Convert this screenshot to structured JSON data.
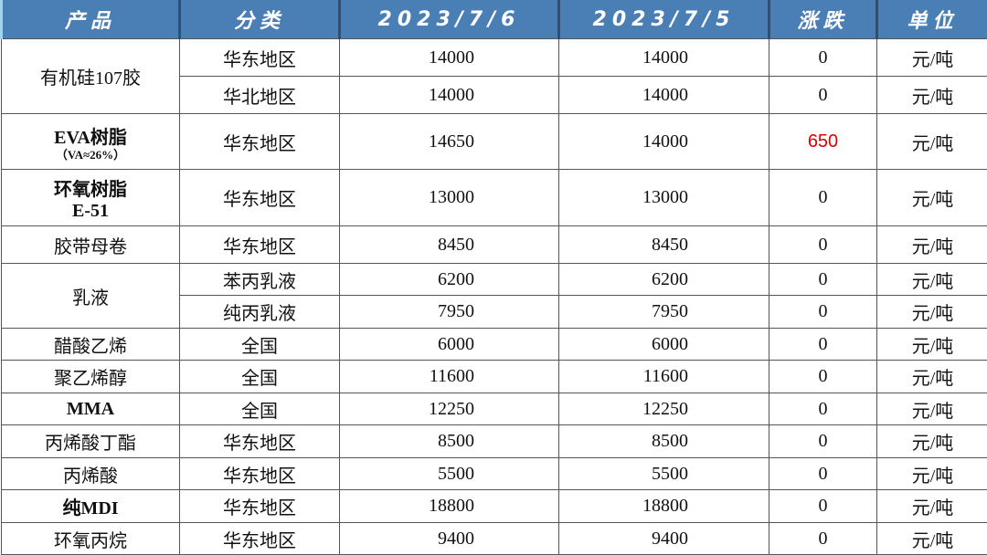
{
  "headers": [
    "产品",
    "分类",
    "2023/7/6",
    "2023/7/5",
    "涨跌",
    "单位"
  ],
  "rows": [
    {
      "product": "有机硅107胶",
      "span": 2,
      "region": "华东地区",
      "d1": "14000",
      "d2": "14000",
      "chg": "0",
      "unit": "元/吨"
    },
    {
      "region": "华北地区",
      "d1": "14000",
      "d2": "14000",
      "chg": "0",
      "unit": "元/吨"
    },
    {
      "product": "EVA树脂",
      "product_sub": "（VA≈26%）",
      "span": 1,
      "region": "华东地区",
      "d1": "14650",
      "d2": "14000",
      "chg": "650",
      "unit": "元/吨",
      "chg_color": "#e00000"
    },
    {
      "product": "环氧树脂",
      "product_sub": "E-51",
      "span": 1,
      "region": "华东地区",
      "d1": "13000",
      "d2": "13000",
      "chg": "0",
      "unit": "元/吨"
    },
    {
      "product": "胶带母卷",
      "span": 1,
      "region": "华东地区",
      "d1": "8450",
      "d2": "8450",
      "chg": "0",
      "unit": "元/吨"
    },
    {
      "product": "乳液",
      "span": 2,
      "region": "苯丙乳液",
      "d1": "6200",
      "d2": "6200",
      "chg": "0",
      "unit": "元/吨"
    },
    {
      "region": "纯丙乳液",
      "d1": "7950",
      "d2": "7950",
      "chg": "0",
      "unit": "元/吨"
    },
    {
      "product": "醋酸乙烯",
      "span": 1,
      "region": "全国",
      "d1": "6000",
      "d2": "6000",
      "chg": "0",
      "unit": "元/吨"
    },
    {
      "product": "聚乙烯醇",
      "span": 1,
      "region": "全国",
      "d1": "11600",
      "d2": "11600",
      "chg": "0",
      "unit": "元/吨"
    },
    {
      "product": "MMA",
      "span": 1,
      "region": "全国",
      "d1": "12250",
      "d2": "12250",
      "chg": "0",
      "unit": "元/吨"
    },
    {
      "product": "丙烯酸丁酯",
      "span": 1,
      "region": "华东地区",
      "d1": "8500",
      "d2": "8500",
      "chg": "0",
      "unit": "元/吨"
    },
    {
      "product": "丙烯酸",
      "span": 1,
      "region": "华东地区",
      "d1": "5500",
      "d2": "5500",
      "chg": "0",
      "unit": "元/吨"
    },
    {
      "product": "纯MDI",
      "span": 1,
      "region": "华东地区",
      "d1": "18800",
      "d2": "18800",
      "chg": "0",
      "unit": "元/吨"
    },
    {
      "product": "环氧丙烷",
      "span": 1,
      "region": "华东地区",
      "d1": "9400",
      "d2": "9400",
      "chg": "0",
      "unit": "元/吨"
    }
  ]
}
